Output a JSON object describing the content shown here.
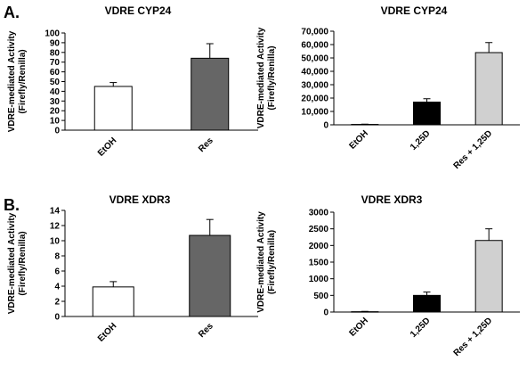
{
  "panels": [
    {
      "label": "A."
    },
    {
      "label": "B."
    }
  ],
  "chart_data": [
    {
      "type": "bar",
      "title": "VDRE CYP24",
      "ylabel": [
        "VDRE-mediated Activity",
        "(Firefly/Renilla)"
      ],
      "categories": [
        "EtOH",
        "Res"
      ],
      "values": [
        45,
        74
      ],
      "errors": [
        4,
        15
      ],
      "colors": [
        "#ffffff",
        "#666666"
      ],
      "ylim": [
        0,
        100
      ],
      "yticks": [
        "0",
        "10",
        "20",
        "30",
        "40",
        "50",
        "60",
        "70",
        "80",
        "90",
        "100"
      ]
    },
    {
      "type": "bar",
      "title": "VDRE CYP24",
      "ylabel": [
        "VDRE-mediated Activity",
        "(Firefly/Renilla)"
      ],
      "categories": [
        "EtOH",
        "1,25D",
        "Res + 1,25D"
      ],
      "values": [
        300,
        17000,
        54000
      ],
      "errors": [
        200,
        2500,
        7500
      ],
      "colors": [
        "#ffffff",
        "#000000",
        "#d0d0d0"
      ],
      "ylim": [
        0,
        70000
      ],
      "yticks": [
        "0",
        "10,000",
        "20,000",
        "30,000",
        "40,000",
        "50,000",
        "60,000",
        "70,000"
      ]
    },
    {
      "type": "bar",
      "title": "VDRE XDR3",
      "ylabel": [
        "VDRE-mediated Activity",
        "(Firefly/Renilla)"
      ],
      "categories": [
        "EtOH",
        "Res"
      ],
      "values": [
        3.9,
        10.7
      ],
      "errors": [
        0.7,
        2.1
      ],
      "colors": [
        "#ffffff",
        "#666666"
      ],
      "ylim": [
        0,
        14
      ],
      "yticks": [
        "0",
        "2",
        "4",
        "6",
        "8",
        "10",
        "12",
        "14"
      ]
    },
    {
      "type": "bar",
      "title": "VDRE XDR3",
      "ylabel": [
        "VDRE-mediated Activity",
        "(Firefly/Renilla)"
      ],
      "categories": [
        "EtOH",
        "1,25D",
        "Res + 1,25D"
      ],
      "values": [
        10,
        500,
        2150
      ],
      "errors": [
        10,
        100,
        350
      ],
      "colors": [
        "#ffffff",
        "#000000",
        "#d0d0d0"
      ],
      "ylim": [
        0,
        3000
      ],
      "yticks": [
        "0",
        "500",
        "1000",
        "1500",
        "2000",
        "2500",
        "3000"
      ]
    }
  ]
}
